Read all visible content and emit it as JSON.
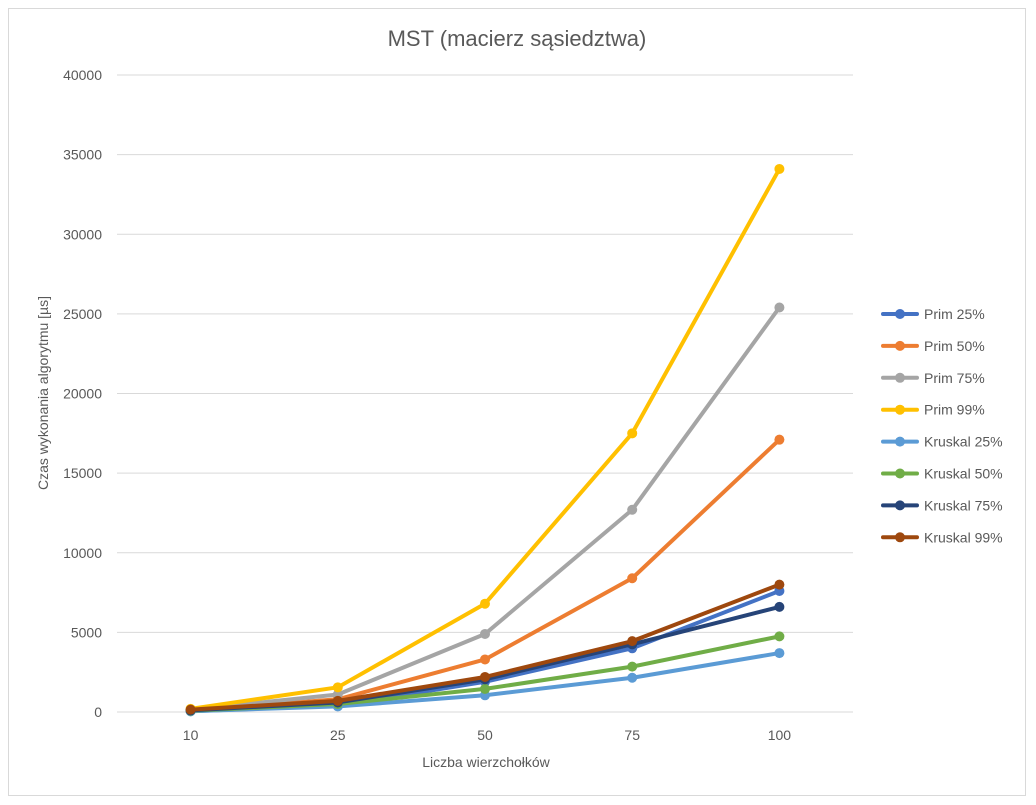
{
  "chart_data": {
    "type": "line",
    "title": "MST (macierz sąsiedztwa)",
    "xlabel": "Liczba wierzchołków",
    "ylabel": "Czas wykonania algorytmu [µs]",
    "categories": [
      "10",
      "25",
      "50",
      "75",
      "100"
    ],
    "ylim": [
      0,
      40000
    ],
    "yticks": [
      0,
      5000,
      10000,
      15000,
      20000,
      25000,
      30000,
      35000,
      40000
    ],
    "grid": true,
    "legend_position": "right",
    "series": [
      {
        "name": "Prim 25%",
        "color": "#4472c4",
        "values": [
          50,
          400,
          1900,
          4000,
          7600
        ]
      },
      {
        "name": "Prim 50%",
        "color": "#ed7d31",
        "values": [
          100,
          800,
          3300,
          8400,
          17100
        ]
      },
      {
        "name": "Prim 75%",
        "color": "#a5a5a5",
        "values": [
          150,
          1100,
          4900,
          12700,
          25400
        ]
      },
      {
        "name": "Prim 99%",
        "color": "#ffc000",
        "values": [
          200,
          1550,
          6800,
          17500,
          34100
        ]
      },
      {
        "name": "Kruskal 25%",
        "color": "#5b9bd5",
        "values": [
          50,
          350,
          1050,
          2150,
          3700
        ]
      },
      {
        "name": "Kruskal 50%",
        "color": "#70ad47",
        "values": [
          80,
          500,
          1450,
          2850,
          4750
        ]
      },
      {
        "name": "Kruskal 75%",
        "color": "#264478",
        "values": [
          100,
          600,
          2050,
          4250,
          6600
        ]
      },
      {
        "name": "Kruskal 99%",
        "color": "#9e480e",
        "values": [
          150,
          700,
          2200,
          4450,
          8000
        ]
      }
    ]
  }
}
